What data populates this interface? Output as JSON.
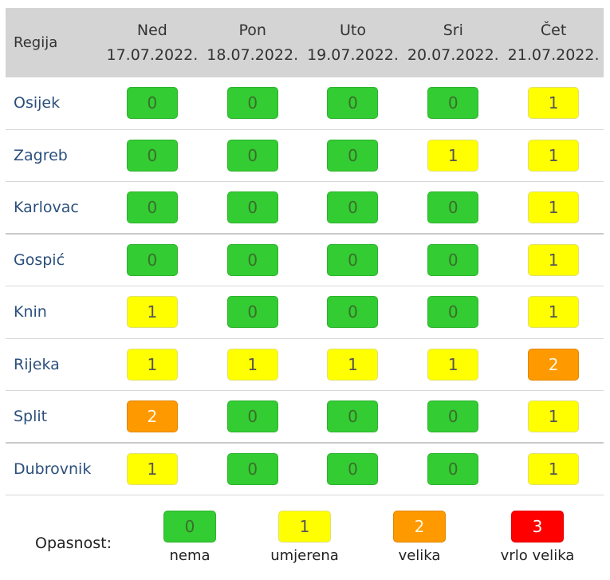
{
  "header": {
    "region_label": "Regija",
    "days": [
      {
        "day": "Ned",
        "date": "17.07.2022."
      },
      {
        "day": "Pon",
        "date": "18.07.2022."
      },
      {
        "day": "Uto",
        "date": "19.07.2022."
      },
      {
        "day": "Sri",
        "date": "20.07.2022."
      },
      {
        "day": "Čet",
        "date": "21.07.2022."
      }
    ]
  },
  "rows": [
    {
      "region": "Osijek",
      "levels": [
        "0",
        "0",
        "0",
        "0",
        "1"
      ]
    },
    {
      "region": "Zagreb",
      "levels": [
        "0",
        "0",
        "0",
        "1",
        "1"
      ]
    },
    {
      "region": "Karlovac",
      "levels": [
        "0",
        "0",
        "0",
        "0",
        "1"
      ]
    },
    {
      "region": "Gospić",
      "levels": [
        "0",
        "0",
        "0",
        "0",
        "1"
      ]
    },
    {
      "region": "Knin",
      "levels": [
        "1",
        "0",
        "0",
        "0",
        "1"
      ]
    },
    {
      "region": "Rijeka",
      "levels": [
        "1",
        "1",
        "1",
        "1",
        "2"
      ]
    },
    {
      "region": "Split",
      "levels": [
        "2",
        "0",
        "0",
        "0",
        "1"
      ]
    },
    {
      "region": "Dubrovnik",
      "levels": [
        "1",
        "0",
        "0",
        "0",
        "1"
      ]
    }
  ],
  "legend": {
    "label": "Opasnost:",
    "items": [
      {
        "value": "0",
        "text": "nema"
      },
      {
        "value": "1",
        "text": "umjerena"
      },
      {
        "value": "2",
        "text": "velika"
      },
      {
        "value": "3",
        "text": "vrlo velika"
      }
    ]
  },
  "colors": {
    "level_0": "#33cc33",
    "level_1": "#ffff00",
    "level_2": "#ff9900",
    "level_3": "#ff0000",
    "header_bg": "#d4d4d4",
    "region_text": "#2b4f7c"
  }
}
